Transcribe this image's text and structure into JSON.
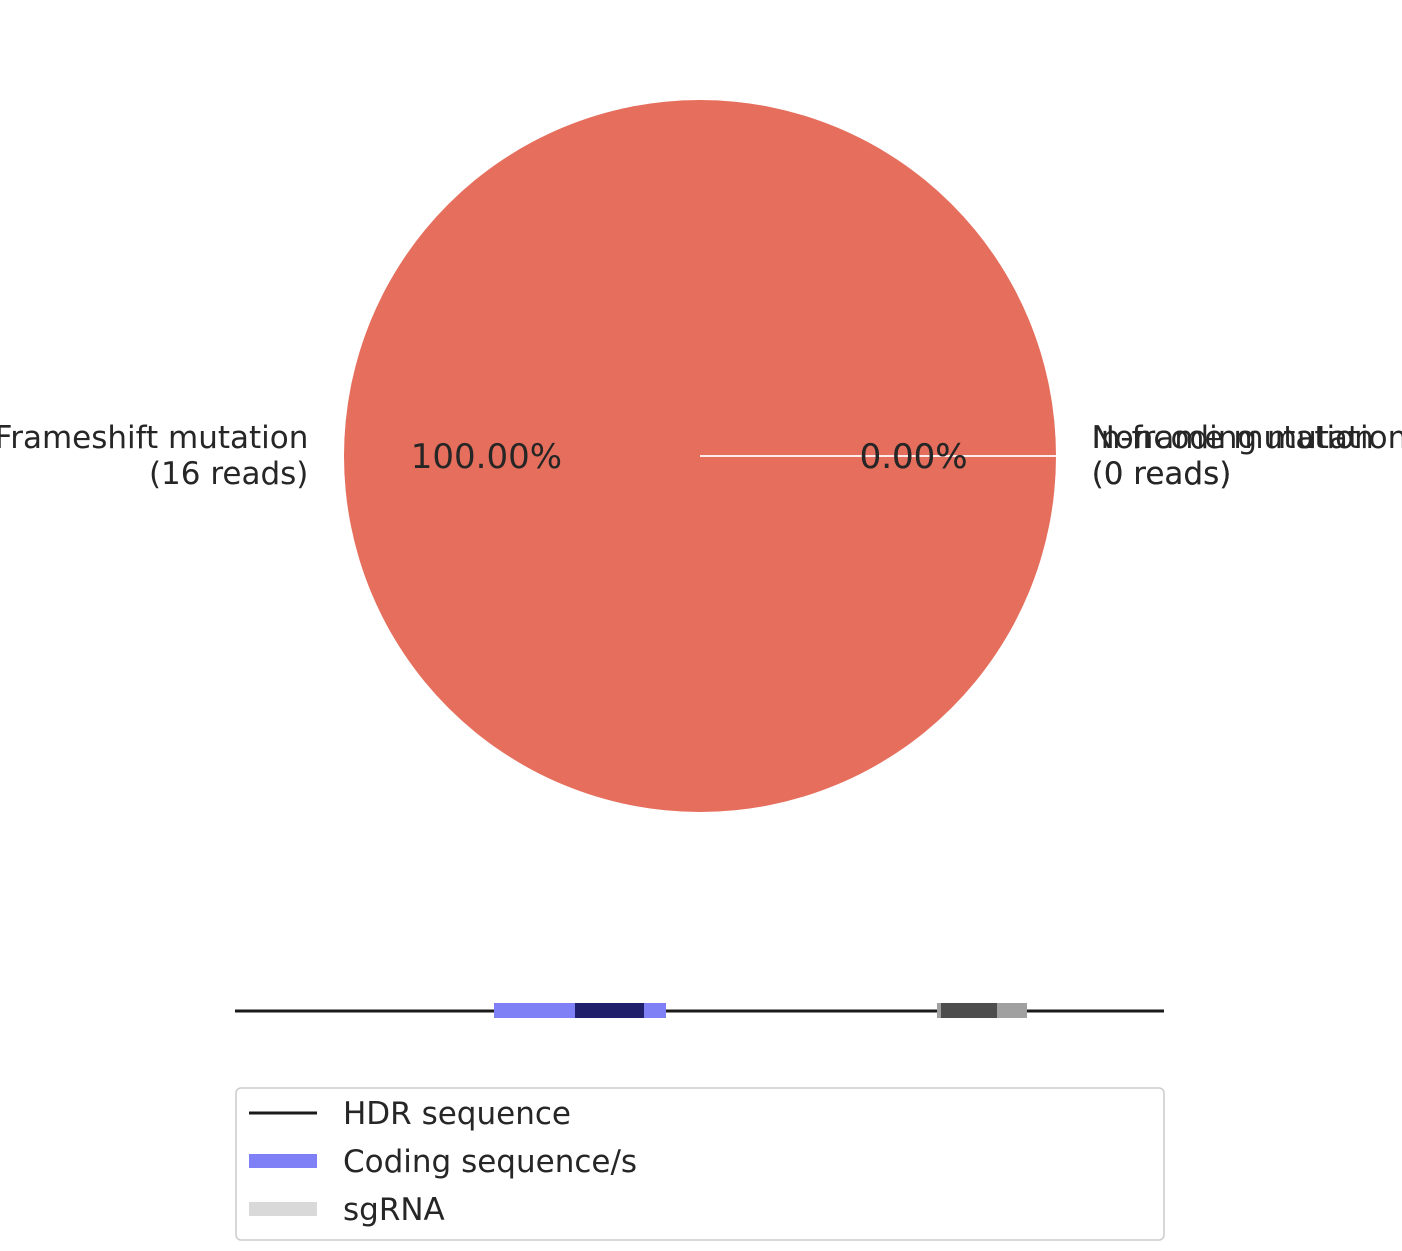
{
  "chart_data": {
    "type": "pie",
    "slices": [
      {
        "label_line1": "Frameshift mutation",
        "label_line2": "(16 reads)",
        "reads": 16,
        "pct_text": "100.00%",
        "color": "#e66e5c"
      },
      {
        "label_line1": "In-frame mutation",
        "label_line2": "(0 reads)",
        "reads": 0,
        "pct_text": "0.00%",
        "color": "#e66e5c"
      },
      {
        "label_line1": "Noncoding mutation",
        "label_line2": "(0 reads)",
        "reads": 0,
        "pct_text": "0.00%",
        "color": "#e66e5c"
      }
    ],
    "legend": {
      "placement": "bottom",
      "items": [
        {
          "label": "HDR sequence",
          "color": "#1a1a1a"
        },
        {
          "label": "Coding sequence/s",
          "color": "#8080f6"
        },
        {
          "label": "sgRNA",
          "color": "#d9d9d9"
        }
      ]
    },
    "track": {
      "coding_color": "#8080f6",
      "coding_overlap_color": "#1f1f6b",
      "sgrna_color": "#a0a0a0",
      "sgrna_overlap_color": "#4d4d4d"
    }
  }
}
